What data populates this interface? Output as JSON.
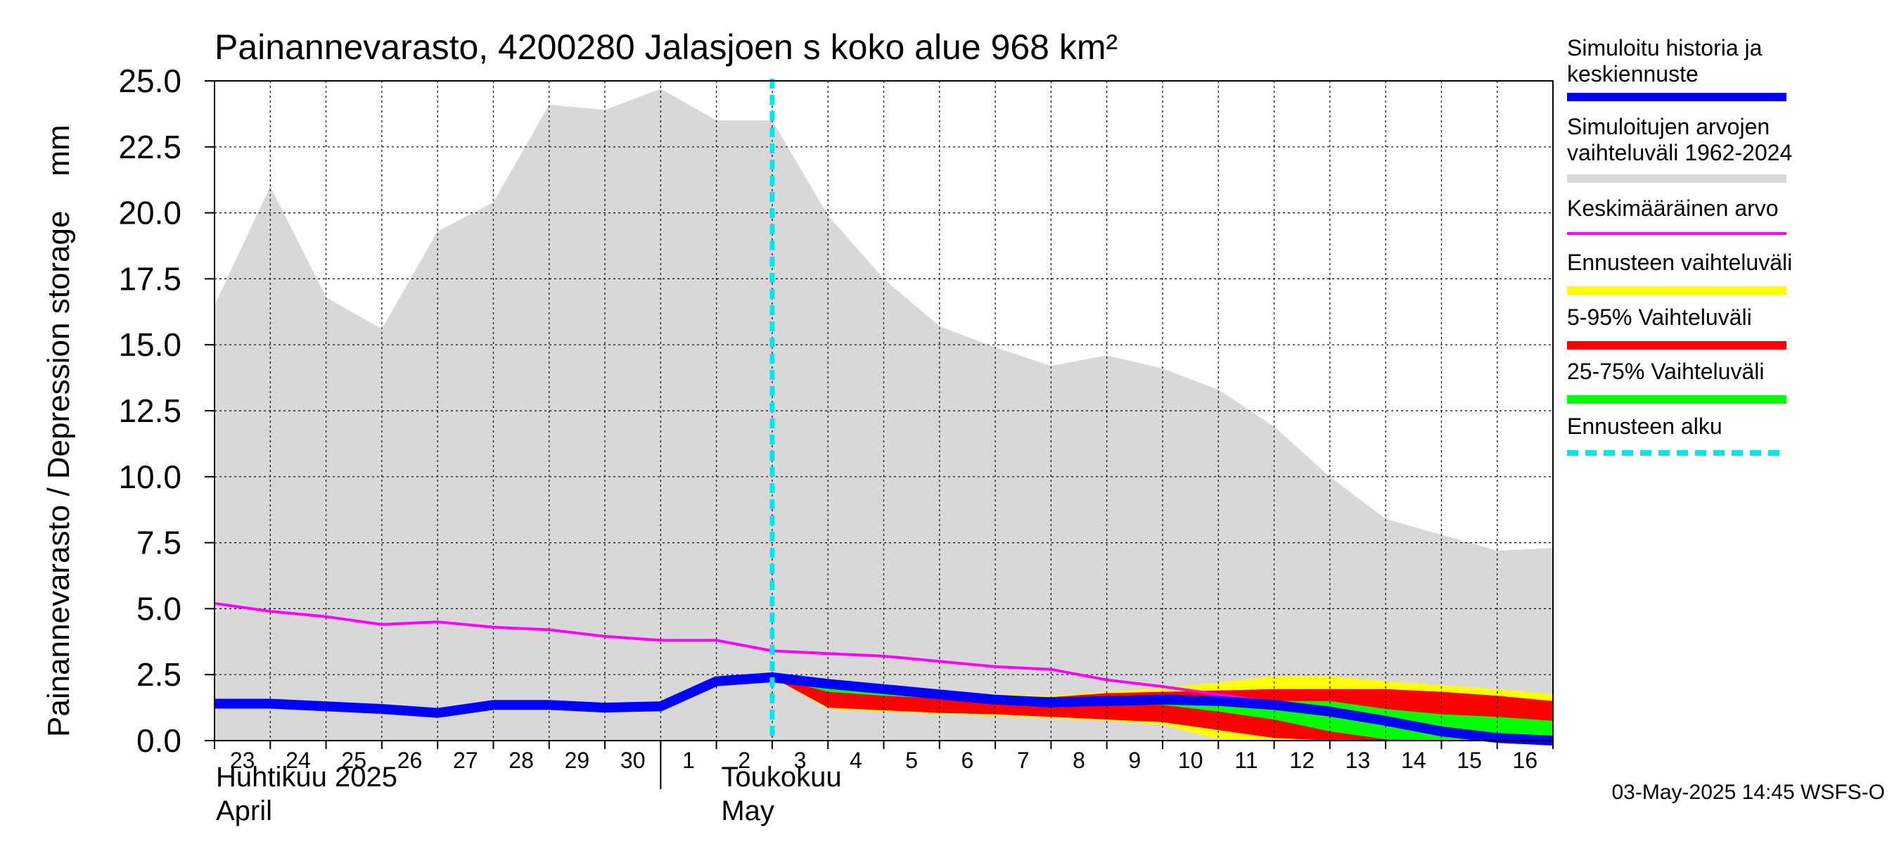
{
  "chart_data": {
    "type": "area",
    "title": "Painannevarasto, 4200280 Jalasjoen s koko alue 968 km²",
    "ylabel": "Painannevarasto / Depression storage    mm",
    "ylim": [
      0,
      25
    ],
    "yticks": [
      "0.0",
      "2.5",
      "5.0",
      "7.5",
      "10.0",
      "12.5",
      "15.0",
      "17.5",
      "20.0",
      "22.5",
      "25.0"
    ],
    "x_tick_labels": [
      "23",
      "24",
      "25",
      "26",
      "27",
      "28",
      "29",
      "30",
      "1",
      "2",
      "3",
      "4",
      "5",
      "6",
      "7",
      "8",
      "9",
      "10",
      "11",
      "12",
      "13",
      "14",
      "15",
      "16"
    ],
    "x_dates": [
      "2025-04-23",
      "2025-04-24",
      "2025-04-25",
      "2025-04-26",
      "2025-04-27",
      "2025-04-28",
      "2025-04-29",
      "2025-04-30",
      "2025-05-01",
      "2025-05-02",
      "2025-05-03",
      "2025-05-04",
      "2025-05-05",
      "2025-05-06",
      "2025-05-07",
      "2025-05-08",
      "2025-05-09",
      "2025-05-10",
      "2025-05-11",
      "2025-05-12",
      "2025-05-13",
      "2025-05-14",
      "2025-05-15",
      "2025-05-16",
      "2025-05-17"
    ],
    "month_labels": [
      {
        "fi": "Huhtikuu  2025",
        "en": "April"
      },
      {
        "fi": "Toukokuu",
        "en": "May"
      }
    ],
    "grid": true,
    "forecast_start": "2025-05-03",
    "series": [
      {
        "name": "Simuloitujen arvojen vaihteluväli 1962-2024",
        "color": "#d8d8d8",
        "upper": [
          16.5,
          21.0,
          16.8,
          15.6,
          19.3,
          20.4,
          24.1,
          23.9,
          24.7,
          23.5,
          23.5,
          19.9,
          17.5,
          15.7,
          14.9,
          14.2,
          14.6,
          14.1,
          13.3,
          11.9,
          10.0,
          8.4,
          7.8,
          7.2,
          7.3
        ],
        "lower": [
          0,
          0,
          0,
          0,
          0,
          0,
          0,
          0,
          0,
          0,
          0,
          0,
          0,
          0,
          0,
          0,
          0,
          0,
          0,
          0,
          0,
          0,
          0,
          0,
          0
        ]
      },
      {
        "name": "Ennusteen vaihteluväli",
        "color": "#ffff00",
        "upper": [
          null,
          null,
          null,
          null,
          null,
          null,
          null,
          null,
          null,
          null,
          2.4,
          2.35,
          2.05,
          1.85,
          1.75,
          1.7,
          1.85,
          2.0,
          2.2,
          2.45,
          2.45,
          2.25,
          2.1,
          1.95,
          1.75
        ],
        "lower": [
          null,
          null,
          null,
          null,
          null,
          null,
          null,
          null,
          null,
          null,
          2.4,
          1.2,
          1.1,
          1.0,
          0.95,
          0.85,
          0.75,
          0.6,
          0.05,
          0.0,
          0.0,
          0.0,
          0.0,
          0.0,
          0.0
        ]
      },
      {
        "name": "5-95% Vaihteluväli",
        "color": "#ff0000",
        "upper": [
          null,
          null,
          null,
          null,
          null,
          null,
          null,
          null,
          null,
          null,
          2.4,
          2.25,
          2.0,
          1.85,
          1.7,
          1.65,
          1.8,
          1.85,
          1.9,
          1.95,
          1.95,
          1.95,
          1.85,
          1.7,
          1.5
        ],
        "lower": [
          null,
          null,
          null,
          null,
          null,
          null,
          null,
          null,
          null,
          null,
          2.4,
          1.25,
          1.15,
          1.05,
          1.0,
          0.9,
          0.8,
          0.7,
          0.4,
          0.1,
          0.0,
          0.0,
          0.0,
          0.0,
          0.0
        ]
      },
      {
        "name": "25-75% Vaihteluväli",
        "color": "#00ff00",
        "upper": [
          null,
          null,
          null,
          null,
          null,
          null,
          null,
          null,
          null,
          null,
          2.4,
          2.0,
          1.85,
          1.7,
          1.55,
          1.45,
          1.45,
          1.45,
          1.45,
          1.5,
          1.5,
          1.2,
          1.0,
          0.9,
          0.75
        ],
        "lower": [
          null,
          null,
          null,
          null,
          null,
          null,
          null,
          null,
          null,
          null,
          2.4,
          1.85,
          1.7,
          1.6,
          1.45,
          1.35,
          1.35,
          1.35,
          1.1,
          0.8,
          0.35,
          0.05,
          0.0,
          0.0,
          0.0
        ]
      },
      {
        "name": "Keskimääräinen arvo",
        "color": "#ff00ff",
        "values": [
          5.2,
          4.9,
          4.7,
          4.4,
          4.5,
          4.3,
          4.2,
          3.95,
          3.8,
          3.8,
          3.4,
          3.3,
          3.2,
          3.0,
          2.8,
          2.7,
          2.3,
          2.05,
          1.75,
          1.45,
          1.15,
          0.8,
          0.45,
          0.15,
          0.0
        ]
      },
      {
        "name": "Simuloitu historia ja keskiennuste",
        "color": "#0000ff",
        "values": [
          1.4,
          1.4,
          1.3,
          1.2,
          1.05,
          1.35,
          1.35,
          1.25,
          1.3,
          2.25,
          2.4,
          2.15,
          1.95,
          1.75,
          1.55,
          1.45,
          1.5,
          1.55,
          1.5,
          1.35,
          1.1,
          0.75,
          0.35,
          0.1,
          0.0
        ]
      }
    ]
  },
  "legend": {
    "items": [
      {
        "label": "Simuloitu historia ja\nkeskiennuste",
        "color": "#0000ff",
        "style": "solid"
      },
      {
        "label": "Simuloitujen arvojen\nvaihteluväli 1962-2024",
        "color": "#d8d8d8",
        "style": "solid"
      },
      {
        "label": "Keskimääräinen arvo",
        "color": "#ff00ff",
        "style": "thin"
      },
      {
        "label": "Ennusteen vaihteluväli",
        "color": "#ffff00",
        "style": "solid"
      },
      {
        "label": "5-95% Vaihteluväli",
        "color": "#ff0000",
        "style": "solid"
      },
      {
        "label": "25-75% Vaihteluväli",
        "color": "#00ff00",
        "style": "solid"
      },
      {
        "label": "Ennusteen alku",
        "color": "#00e5ee",
        "style": "dashed"
      }
    ]
  },
  "footer": {
    "timestamp": "03-May-2025 14:45 WSFS-O"
  }
}
